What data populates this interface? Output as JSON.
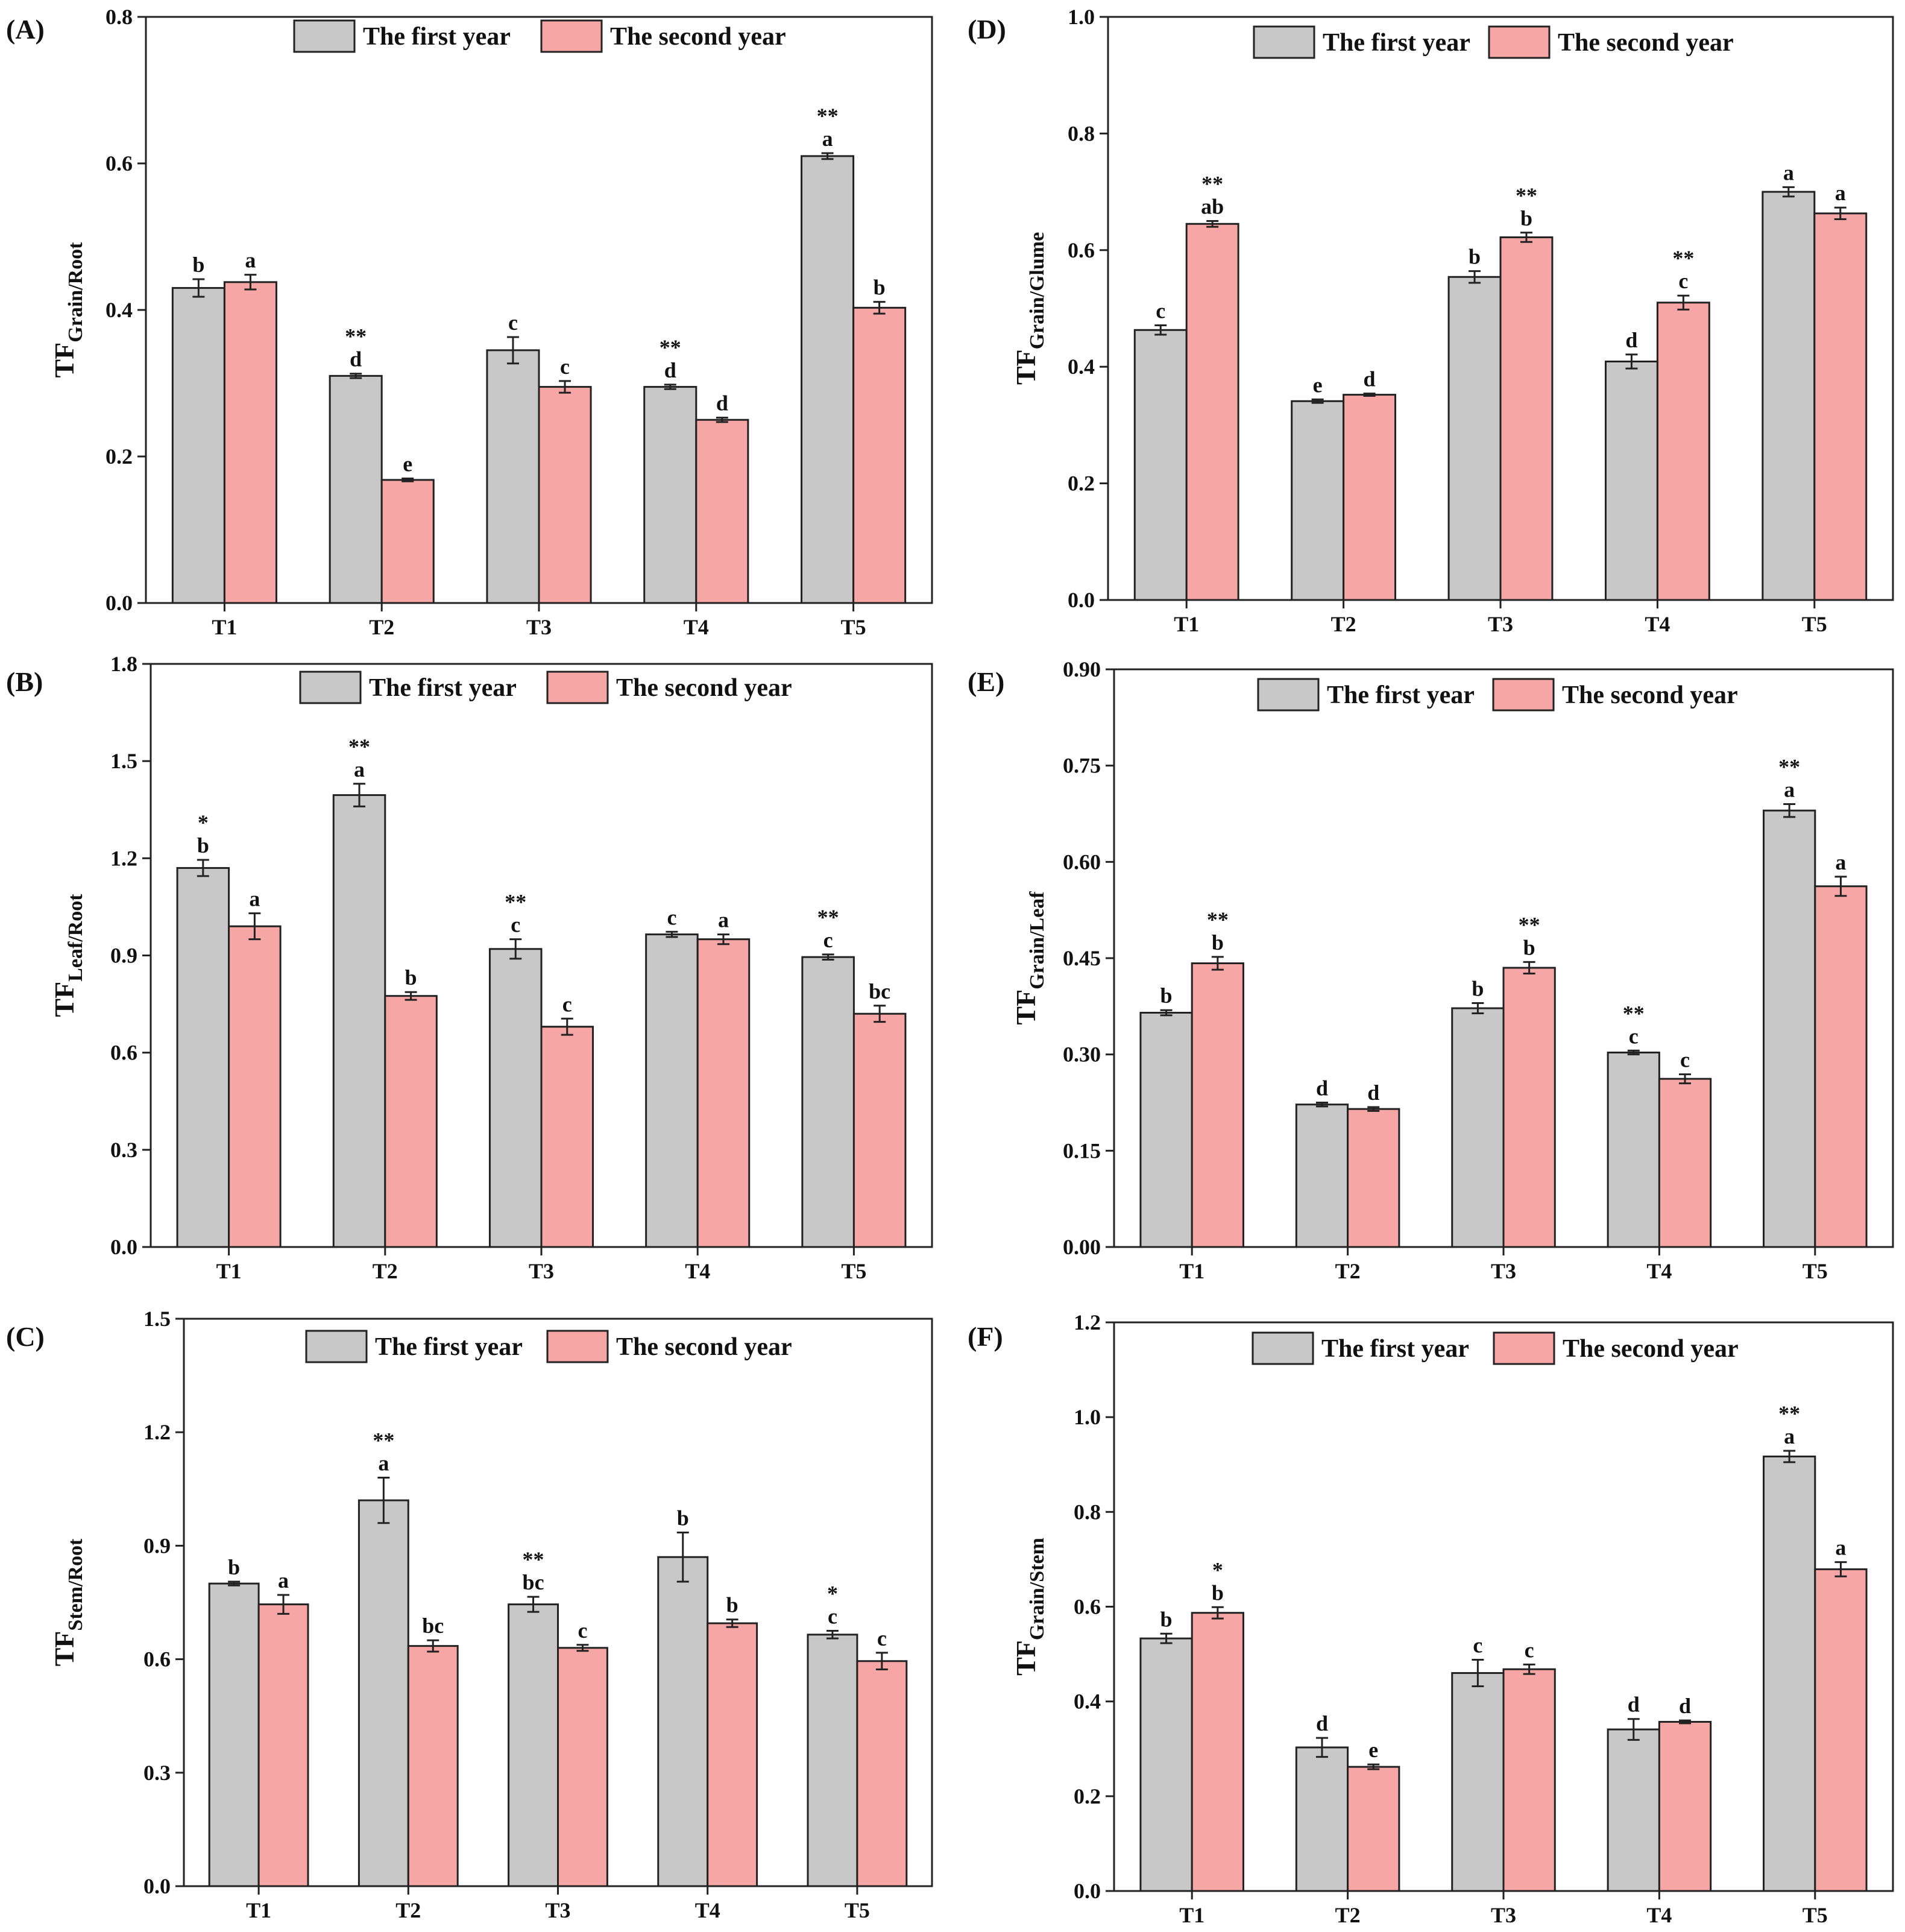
{
  "colors": {
    "first_year": "#c8c8c8",
    "second_year": "#f7a6a6",
    "axis": "#222222"
  },
  "chart_data": [
    {
      "type": "bar",
      "panel": "(A)",
      "ylabel_main": "TF",
      "ylabel_sub": "Grain/Root",
      "categories": [
        "T1",
        "T2",
        "T3",
        "T4",
        "T5"
      ],
      "ylim": [
        0,
        0.8
      ],
      "yticks": [
        "0.0",
        "0.2",
        "0.4",
        "0.6",
        "0.8"
      ],
      "legend": [
        "The first year",
        "The second year"
      ],
      "legend_position": "top-center",
      "series": [
        {
          "name": "The first year",
          "values": [
            0.43,
            0.31,
            0.345,
            0.295,
            0.61
          ],
          "errors": [
            0.012,
            0.003,
            0.018,
            0.003,
            0.004
          ],
          "letters": [
            "b",
            "d",
            "c",
            "d",
            "a"
          ],
          "stars": [
            "",
            "**",
            "",
            "**",
            "**"
          ]
        },
        {
          "name": "The second year",
          "values": [
            0.438,
            0.168,
            0.295,
            0.25,
            0.403
          ],
          "errors": [
            0.01,
            0.002,
            0.008,
            0.003,
            0.008
          ],
          "letters": [
            "a",
            "e",
            "c",
            "d",
            "b"
          ],
          "stars": [
            "",
            "",
            "",
            "",
            ""
          ]
        }
      ]
    },
    {
      "type": "bar",
      "panel": "(B)",
      "ylabel_main": "TF",
      "ylabel_sub": "Leaf/Root",
      "categories": [
        "T1",
        "T2",
        "T3",
        "T4",
        "T5"
      ],
      "ylim": [
        0,
        1.8
      ],
      "yticks": [
        "0.0",
        "0.3",
        "0.6",
        "0.9",
        "1.2",
        "1.5",
        "1.8"
      ],
      "legend": [
        "The first year",
        "The second year"
      ],
      "legend_position": "top-center",
      "series": [
        {
          "name": "The first year",
          "values": [
            1.17,
            1.395,
            0.92,
            0.965,
            0.895
          ],
          "errors": [
            0.025,
            0.035,
            0.03,
            0.008,
            0.008
          ],
          "letters": [
            "b",
            "a",
            "c",
            "c",
            "c"
          ],
          "stars": [
            "*",
            "**",
            "**",
            "",
            "**"
          ]
        },
        {
          "name": "The second year",
          "values": [
            0.99,
            0.775,
            0.68,
            0.95,
            0.72
          ],
          "errors": [
            0.04,
            0.012,
            0.025,
            0.015,
            0.025
          ],
          "letters": [
            "a",
            "b",
            "c",
            "a",
            "bc"
          ],
          "stars": [
            "",
            "",
            "",
            "",
            ""
          ]
        }
      ]
    },
    {
      "type": "bar",
      "panel": "(C)",
      "ylabel_main": "TF",
      "ylabel_sub": "Stem/Root",
      "categories": [
        "T1",
        "T2",
        "T3",
        "T4",
        "T5"
      ],
      "ylim": [
        0,
        1.5
      ],
      "yticks": [
        "0.0",
        "0.3",
        "0.6",
        "0.9",
        "1.2",
        "1.5"
      ],
      "legend": [
        "The first year",
        "The second year"
      ],
      "legend_position": "top-center",
      "series": [
        {
          "name": "The first year",
          "values": [
            0.8,
            1.02,
            0.745,
            0.87,
            0.665
          ],
          "errors": [
            0.005,
            0.06,
            0.02,
            0.065,
            0.01
          ],
          "letters": [
            "b",
            "a",
            "bc",
            "b",
            "c"
          ],
          "stars": [
            "",
            "**",
            "**",
            "",
            "*"
          ]
        },
        {
          "name": "The second year",
          "values": [
            0.745,
            0.635,
            0.63,
            0.695,
            0.595
          ],
          "errors": [
            0.025,
            0.015,
            0.008,
            0.01,
            0.022
          ],
          "letters": [
            "a",
            "bc",
            "c",
            "b",
            "c"
          ],
          "stars": [
            "",
            "",
            "",
            "",
            ""
          ]
        }
      ]
    },
    {
      "type": "bar",
      "panel": "(D)",
      "ylabel_main": "TF",
      "ylabel_sub": "Grain/Glume",
      "categories": [
        "T1",
        "T2",
        "T3",
        "T4",
        "T5"
      ],
      "ylim": [
        0,
        1.0
      ],
      "yticks": [
        "0.0",
        "0.2",
        "0.4",
        "0.6",
        "0.8",
        "1.0"
      ],
      "legend": [
        "The first year",
        "The second year"
      ],
      "legend_position": "top-center",
      "series": [
        {
          "name": "The first year",
          "values": [
            0.463,
            0.341,
            0.554,
            0.409,
            0.7
          ],
          "errors": [
            0.008,
            0.003,
            0.01,
            0.012,
            0.008
          ],
          "letters": [
            "c",
            "e",
            "b",
            "d",
            "a"
          ],
          "stars": [
            "",
            "",
            "",
            "",
            ""
          ]
        },
        {
          "name": "The second year",
          "values": [
            0.645,
            0.352,
            0.622,
            0.51,
            0.663
          ],
          "errors": [
            0.005,
            0.002,
            0.008,
            0.012,
            0.01
          ],
          "letters": [
            "ab",
            "d",
            "b",
            "c",
            "a"
          ],
          "stars": [
            "**",
            "",
            "**",
            "**",
            ""
          ]
        }
      ]
    },
    {
      "type": "bar",
      "panel": "(E)",
      "ylabel_main": "TF",
      "ylabel_sub": "Grain/Leaf",
      "categories": [
        "T1",
        "T2",
        "T3",
        "T4",
        "T5"
      ],
      "ylim": [
        0,
        0.9
      ],
      "yticks": [
        "0.00",
        "0.15",
        "0.30",
        "0.45",
        "0.60",
        "0.75",
        "0.90"
      ],
      "legend": [
        "The first year",
        "The second year"
      ],
      "legend_position": "top-center",
      "series": [
        {
          "name": "The first year",
          "values": [
            0.365,
            0.222,
            0.372,
            0.303,
            0.68
          ],
          "errors": [
            0.004,
            0.003,
            0.008,
            0.003,
            0.01
          ],
          "letters": [
            "b",
            "d",
            "b",
            "c",
            "a"
          ],
          "stars": [
            "",
            "",
            "",
            "**",
            "**"
          ]
        },
        {
          "name": "The second year",
          "values": [
            0.442,
            0.215,
            0.435,
            0.262,
            0.562
          ],
          "errors": [
            0.01,
            0.003,
            0.009,
            0.007,
            0.015
          ],
          "letters": [
            "b",
            "d",
            "b",
            "c",
            "a"
          ],
          "stars": [
            "**",
            "",
            "**",
            "",
            ""
          ]
        }
      ]
    },
    {
      "type": "bar",
      "panel": "(F)",
      "ylabel_main": "TF",
      "ylabel_sub": "Grain/Stem",
      "categories": [
        "T1",
        "T2",
        "T3",
        "T4",
        "T5"
      ],
      "ylim": [
        0,
        1.2
      ],
      "yticks": [
        "0.0",
        "0.2",
        "0.4",
        "0.6",
        "0.8",
        "1.0",
        "1.2"
      ],
      "legend": [
        "The first year",
        "The second year"
      ],
      "legend_position": "top-center",
      "series": [
        {
          "name": "The first year",
          "values": [
            0.533,
            0.303,
            0.46,
            0.341,
            0.917
          ],
          "errors": [
            0.01,
            0.02,
            0.028,
            0.022,
            0.012
          ],
          "letters": [
            "b",
            "d",
            "c",
            "d",
            "a"
          ],
          "stars": [
            "",
            "",
            "",
            "",
            "**"
          ]
        },
        {
          "name": "The second year",
          "values": [
            0.587,
            0.262,
            0.468,
            0.357,
            0.679
          ],
          "errors": [
            0.012,
            0.005,
            0.01,
            0.003,
            0.015
          ],
          "letters": [
            "b",
            "e",
            "c",
            "d",
            "a"
          ],
          "stars": [
            "*",
            "",
            "",
            "",
            ""
          ]
        }
      ]
    }
  ]
}
